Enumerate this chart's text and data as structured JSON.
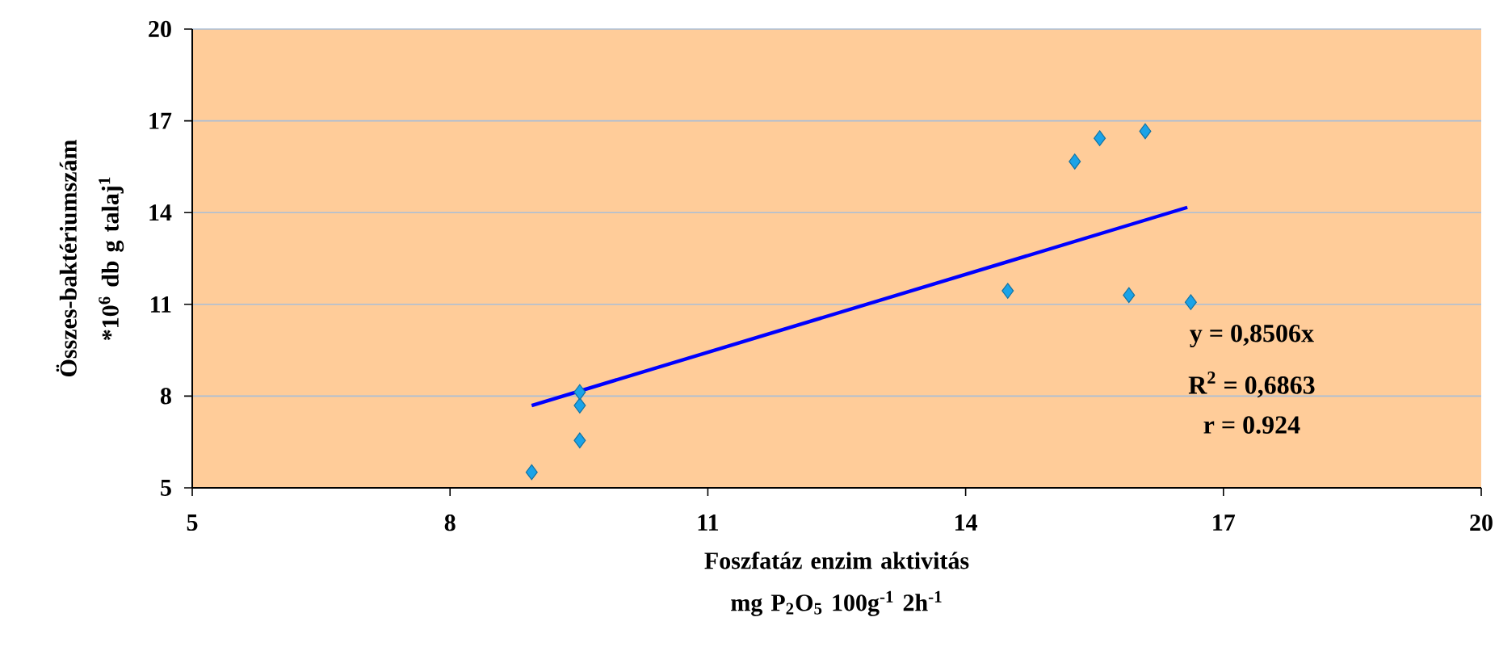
{
  "chart_data": {
    "type": "scatter",
    "xlabel": "Foszfatáz enzim aktivitás mg P$_{2}$O$_{5}$ 100g$^{-1}$ 2h$^{-1}$",
    "ylabel": "Összes-baktériumszám *10$^{6}$ db g talaj$^{1}$",
    "series": [
      {
        "x": [
          8.95,
          9.51,
          9.51,
          9.51,
          14.49,
          15.27,
          15.56,
          15.9,
          16.09,
          16.62
        ],
        "values": [
          5.51,
          6.55,
          7.69,
          8.13,
          11.44,
          15.67,
          16.43,
          11.3,
          16.66,
          11.07
        ],
        "color": "#1aa3e8",
        "marker": "diamond"
      },
      {
        "type": "line",
        "x": [
          8.95,
          16.58
        ],
        "values": [
          7.69,
          14.17
        ],
        "color": "#0000ff",
        "marker": "none"
      }
    ],
    "annotations": [
      "y = 0,8506x",
      "R$^{2}$ = 0,6863",
      "r = 0.924"
    ],
    "xlim": [
      5,
      20
    ],
    "ylim": [
      5,
      20
    ],
    "xticks": [
      5,
      8,
      11,
      14,
      17,
      20
    ],
    "yticks": [
      5,
      8,
      11,
      14,
      17,
      20
    ],
    "grid": "y"
  }
}
